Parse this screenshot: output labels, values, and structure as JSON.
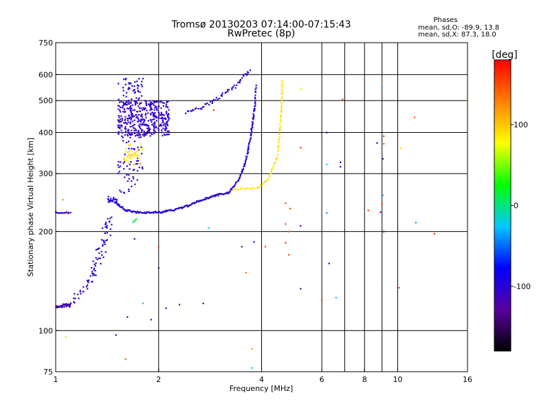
{
  "chart_data": {
    "type": "scatter",
    "title": "Tromsø 20130203 07:14:00-07:15:43",
    "subtitle": "RwPretec (8p)",
    "xlabel": "Frequency [MHz]",
    "ylabel": "Stationary phase Virtual Height [km]",
    "x_scale": "log",
    "y_scale": "log",
    "xlim": [
      1,
      16
    ],
    "ylim": [
      75,
      750
    ],
    "x_ticks": [
      1,
      2,
      4,
      6,
      8,
      10,
      16
    ],
    "x_tick_labels": [
      "1",
      "2",
      "4",
      "6",
      "8",
      "10",
      "16"
    ],
    "x_gridlines": [
      2,
      4,
      6,
      7,
      8,
      9,
      10
    ],
    "y_ticks": [
      75,
      100,
      200,
      300,
      400,
      500,
      600,
      750
    ],
    "y_tick_labels": [
      "75",
      "100",
      "200",
      "300",
      "400",
      "500",
      "600",
      "750"
    ],
    "y_gridlines": [
      100,
      200,
      300,
      400,
      500,
      600
    ],
    "grid": true,
    "stats": {
      "header": "Phases",
      "line1": "mean, sd,O: -89.9, 13.8",
      "line2": "mean, sd,X:  87.3, 18.0"
    },
    "colorbar": {
      "unit": "[deg]",
      "range": [
        -180,
        180
      ],
      "ticks": [
        100,
        0,
        -100
      ],
      "tick_labels": [
        "100",
        "0",
        "-100"
      ],
      "palette": [
        "#000000",
        "#5a00a0",
        "#0000ff",
        "#00c8ff",
        "#00ff00",
        "#ffff00",
        "#ff8000",
        "#ff0000"
      ]
    },
    "traces": [
      {
        "name": "",
        "shape": "line",
        "phase": -110,
        "x": [
          1.0,
          1.1
        ],
        "y": [
          228,
          228
        ],
        "n": 14,
        "jitter": 0.012
      },
      {
        "name": "",
        "shape": "line",
        "phase": -115,
        "x": [
          1.0,
          1.1
        ],
        "y": [
          118,
          120
        ],
        "n": 35,
        "jitter": 0.015
      },
      {
        "name": "",
        "shape": "line",
        "phase": -110,
        "x": [
          1.1,
          1.22,
          1.3
        ],
        "y": [
          120,
          135,
          150
        ],
        "n": 30,
        "jitter": 0.04
      },
      {
        "name": "",
        "shape": "line",
        "phase": -100,
        "x": [
          1.3,
          1.45
        ],
        "y": [
          150,
          220
        ],
        "n": 55,
        "jitter": 0.08
      },
      {
        "name": "",
        "shape": "line",
        "phase": -100,
        "x": [
          1.5,
          1.6,
          1.8,
          2.0,
          2.2,
          2.45,
          2.7,
          2.95,
          3.2
        ],
        "y": [
          245,
          232,
          228,
          229,
          232,
          240,
          250,
          258,
          262
        ],
        "n": 150,
        "jitter": 0.01
      },
      {
        "name": "",
        "shape": "line",
        "phase": -95,
        "x": [
          1.42,
          1.5
        ],
        "y": [
          250,
          248
        ],
        "n": 25,
        "jitter": 0.03
      },
      {
        "name": "",
        "shape": "line",
        "phase": -100,
        "x": [
          3.2,
          3.45,
          3.6,
          3.72,
          3.82
        ],
        "y": [
          262,
          290,
          330,
          390,
          480
        ],
        "n": 80,
        "jitter": 0.012
      },
      {
        "name": "",
        "shape": "line",
        "phase": -100,
        "x": [
          3.82,
          3.85
        ],
        "y": [
          480,
          555
        ],
        "n": 12,
        "jitter": 0.01
      },
      {
        "name": "",
        "shape": "line",
        "phase": 90,
        "x": [
          3.3,
          3.9,
          4.2,
          4.45,
          4.55,
          4.6
        ],
        "y": [
          268,
          272,
          290,
          340,
          440,
          575
        ],
        "n": 80,
        "jitter": 0.01
      },
      {
        "name": "",
        "shape": "line",
        "phase": -100,
        "x": [
          2.4,
          2.8,
          3.0,
          3.4,
          3.7
        ],
        "y": [
          460,
          490,
          510,
          560,
          620
        ],
        "n": 55,
        "jitter": 0.025
      },
      {
        "name": "",
        "shape": "line",
        "phase": 90,
        "x": [
          1.6,
          1.75
        ],
        "y": [
          330,
          345
        ],
        "n": 14,
        "jitter": 0.05
      },
      {
        "name": "",
        "shape": "line",
        "phase": 20,
        "x": [
          1.68,
          1.72
        ],
        "y": [
          215,
          218
        ],
        "n": 4,
        "jitter": 0.01
      }
    ],
    "clusters": [
      {
        "name": "",
        "phase": -105,
        "x_range": [
          1.52,
          2.15
        ],
        "y_range": [
          390,
          500
        ],
        "n": 400
      },
      {
        "name": "",
        "phase": -100,
        "x_range": [
          1.52,
          1.8
        ],
        "y_range": [
          260,
          390
        ],
        "n": 60
      },
      {
        "name": "",
        "phase": -95,
        "x_range": [
          1.52,
          1.8
        ],
        "y_range": [
          500,
          585
        ],
        "n": 45
      },
      {
        "name": "",
        "phase": 90,
        "x_range": [
          1.58,
          1.82
        ],
        "y_range": [
          310,
          370
        ],
        "n": 25
      }
    ],
    "points": [
      {
        "x": 5.2,
        "y": 542,
        "phase": 60
      },
      {
        "x": 6.2,
        "y": 400,
        "phase": -110
      },
      {
        "x": 6.9,
        "y": 505,
        "phase": 150
      },
      {
        "x": 9.0,
        "y": 548,
        "phase": -20
      },
      {
        "x": 9.1,
        "y": 390,
        "phase": 150
      },
      {
        "x": 9.1,
        "y": 370,
        "phase": 140
      },
      {
        "x": 8.7,
        "y": 372,
        "phase": -100
      },
      {
        "x": 9.05,
        "y": 333,
        "phase": -110
      },
      {
        "x": 10.2,
        "y": 358,
        "phase": 95
      },
      {
        "x": 11.2,
        "y": 445,
        "phase": 150
      },
      {
        "x": 16.0,
        "y": 500,
        "phase": 95
      },
      {
        "x": 5.2,
        "y": 360,
        "phase": 160
      },
      {
        "x": 6.2,
        "y": 320,
        "phase": -20
      },
      {
        "x": 6.8,
        "y": 325,
        "phase": -100
      },
      {
        "x": 6.8,
        "y": 315,
        "phase": -110
      },
      {
        "x": 9.05,
        "y": 258,
        "phase": -30
      },
      {
        "x": 9.0,
        "y": 242,
        "phase": 150
      },
      {
        "x": 8.9,
        "y": 229,
        "phase": -110
      },
      {
        "x": 8.2,
        "y": 232,
        "phase": 160
      },
      {
        "x": 9.1,
        "y": 200,
        "phase": -130
      },
      {
        "x": 11.3,
        "y": 213,
        "phase": -40
      },
      {
        "x": 12.8,
        "y": 197,
        "phase": 160
      },
      {
        "x": 4.7,
        "y": 244,
        "phase": 150
      },
      {
        "x": 4.85,
        "y": 235,
        "phase": 155
      },
      {
        "x": 4.7,
        "y": 211,
        "phase": 150
      },
      {
        "x": 5.2,
        "y": 208,
        "phase": -110
      },
      {
        "x": 4.8,
        "y": 200,
        "phase": 150
      },
      {
        "x": 4.7,
        "y": 185,
        "phase": 160
      },
      {
        "x": 4.1,
        "y": 180,
        "phase": 150
      },
      {
        "x": 3.8,
        "y": 186,
        "phase": -100
      },
      {
        "x": 3.5,
        "y": 180,
        "phase": -140
      },
      {
        "x": 3.6,
        "y": 150,
        "phase": 140
      },
      {
        "x": 4.8,
        "y": 170,
        "phase": 150
      },
      {
        "x": 6.3,
        "y": 160,
        "phase": -110
      },
      {
        "x": 5.2,
        "y": 134,
        "phase": -110
      },
      {
        "x": 6.0,
        "y": 124,
        "phase": 160
      },
      {
        "x": 6.6,
        "y": 126,
        "phase": -30
      },
      {
        "x": 6.2,
        "y": 228,
        "phase": -40
      },
      {
        "x": 2.0,
        "y": 155,
        "phase": -140
      },
      {
        "x": 2.3,
        "y": 120,
        "phase": -120
      },
      {
        "x": 2.1,
        "y": 117,
        "phase": -130
      },
      {
        "x": 2.7,
        "y": 121,
        "phase": -140
      },
      {
        "x": 2.8,
        "y": 205,
        "phase": -20
      },
      {
        "x": 2.0,
        "y": 180,
        "phase": 150
      },
      {
        "x": 1.8,
        "y": 121,
        "phase": -20
      },
      {
        "x": 1.62,
        "y": 110,
        "phase": -100
      },
      {
        "x": 1.9,
        "y": 108,
        "phase": -120
      },
      {
        "x": 1.5,
        "y": 97,
        "phase": -110
      },
      {
        "x": 1.6,
        "y": 82,
        "phase": 150
      },
      {
        "x": 3.75,
        "y": 88,
        "phase": 120
      },
      {
        "x": 3.75,
        "y": 77,
        "phase": -30
      },
      {
        "x": 1.07,
        "y": 96,
        "phase": 90
      },
      {
        "x": 1.05,
        "y": 250,
        "phase": 120
      },
      {
        "x": 10.1,
        "y": 135,
        "phase": 150
      },
      {
        "x": 2.9,
        "y": 468,
        "phase": 160
      },
      {
        "x": 1.7,
        "y": 190,
        "phase": -100
      }
    ]
  }
}
